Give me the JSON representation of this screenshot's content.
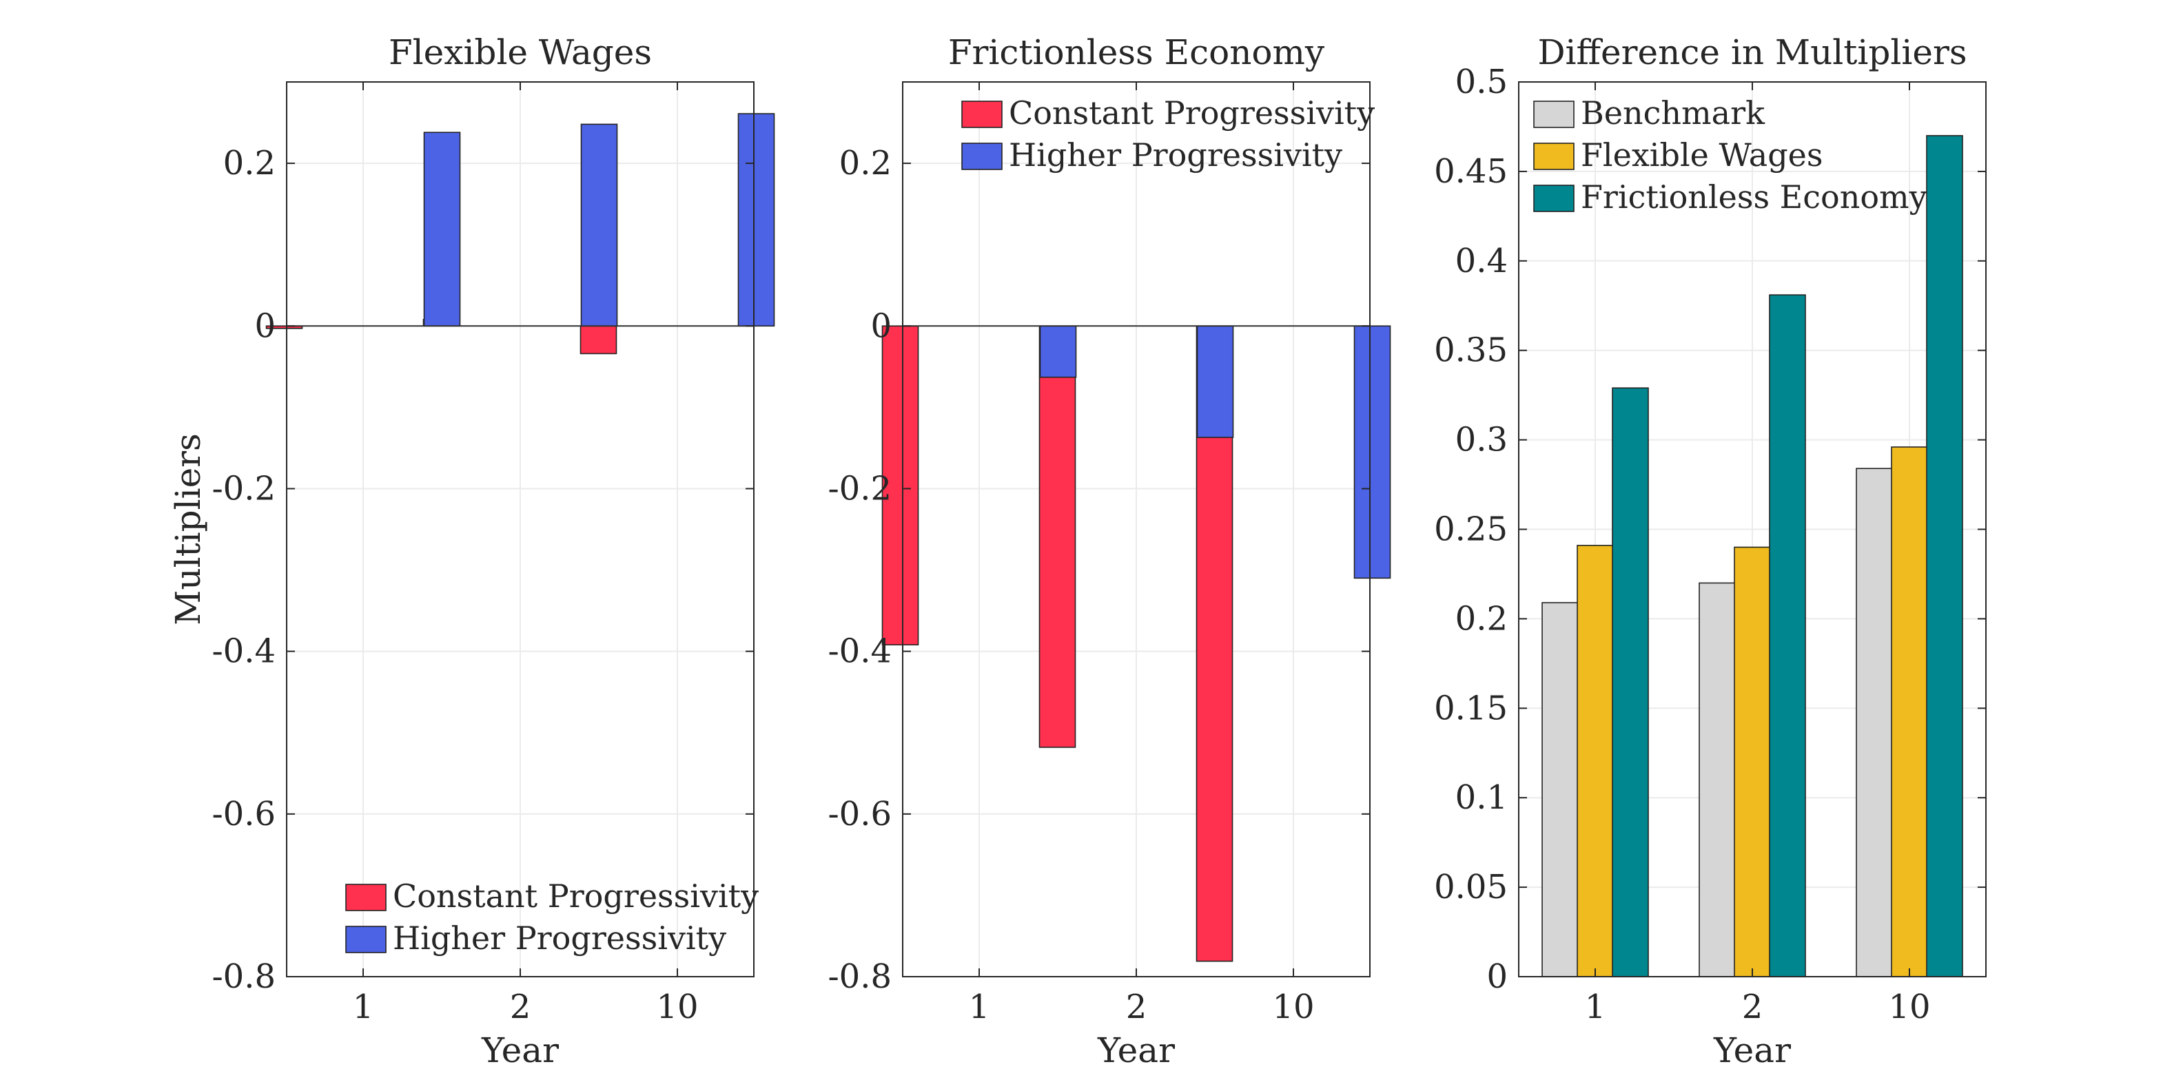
{
  "chart_data": [
    {
      "type": "bar",
      "title": "Flexible Wages",
      "xlabel": "Year",
      "ylabel": "Multipliers",
      "categories": [
        "1",
        "2",
        "10"
      ],
      "ylim": [
        -0.8,
        0.3
      ],
      "yticks": [
        -0.8,
        -0.6,
        -0.4,
        -0.2,
        0,
        0.2
      ],
      "ytick_labels": [
        "-0.8",
        "-0.6",
        "-0.4",
        "-0.2",
        "0",
        "0.2"
      ],
      "grid": true,
      "zero_line": true,
      "legend_position": "bottom-right",
      "series": [
        {
          "name": "Constant Progressivity",
          "color": "#ff314f",
          "values": [
            -0.003,
            0.008,
            -0.034
          ]
        },
        {
          "name": "Higher Progressivity",
          "color": "#4d63e6",
          "values": [
            0.238,
            0.248,
            0.261
          ]
        }
      ]
    },
    {
      "type": "bar",
      "title": "Frictionless Economy",
      "xlabel": "Year",
      "ylabel": "",
      "categories": [
        "1",
        "2",
        "10"
      ],
      "ylim": [
        -0.8,
        0.3
      ],
      "yticks": [
        -0.8,
        -0.6,
        -0.4,
        -0.2,
        0,
        0.2
      ],
      "ytick_labels": [
        "-0.8",
        "-0.6",
        "-0.4",
        "-0.2",
        "0",
        "0.2"
      ],
      "grid": true,
      "zero_line": true,
      "legend_position": "top-right",
      "series": [
        {
          "name": "Constant Progressivity",
          "color": "#ff314f",
          "values": [
            -0.392,
            -0.518,
            -0.781
          ]
        },
        {
          "name": "Higher Progressivity",
          "color": "#4d63e6",
          "values": [
            -0.063,
            -0.137,
            -0.31
          ]
        }
      ]
    },
    {
      "type": "bar",
      "title": "Difference in Multipliers",
      "xlabel": "Year",
      "ylabel": "",
      "categories": [
        "1",
        "2",
        "10"
      ],
      "ylim": [
        0,
        0.5
      ],
      "yticks": [
        0,
        0.05,
        0.1,
        0.15,
        0.2,
        0.25,
        0.3,
        0.35,
        0.4,
        0.45,
        0.5
      ],
      "ytick_labels": [
        "0",
        "0.05",
        "0.1",
        "0.15",
        "0.2",
        "0.25",
        "0.3",
        "0.35",
        "0.4",
        "0.45",
        "0.5"
      ],
      "grid": true,
      "zero_line": false,
      "legend_position": "top-left",
      "series": [
        {
          "name": "Benchmark",
          "color": "#d6d6d6",
          "values": [
            0.209,
            0.22,
            0.284
          ]
        },
        {
          "name": "Flexible Wages",
          "color": "#f0bb1e",
          "values": [
            0.241,
            0.24,
            0.296
          ]
        },
        {
          "name": "Frictionless Economy",
          "color": "#00868f",
          "values": [
            0.329,
            0.381,
            0.47
          ]
        }
      ]
    }
  ]
}
